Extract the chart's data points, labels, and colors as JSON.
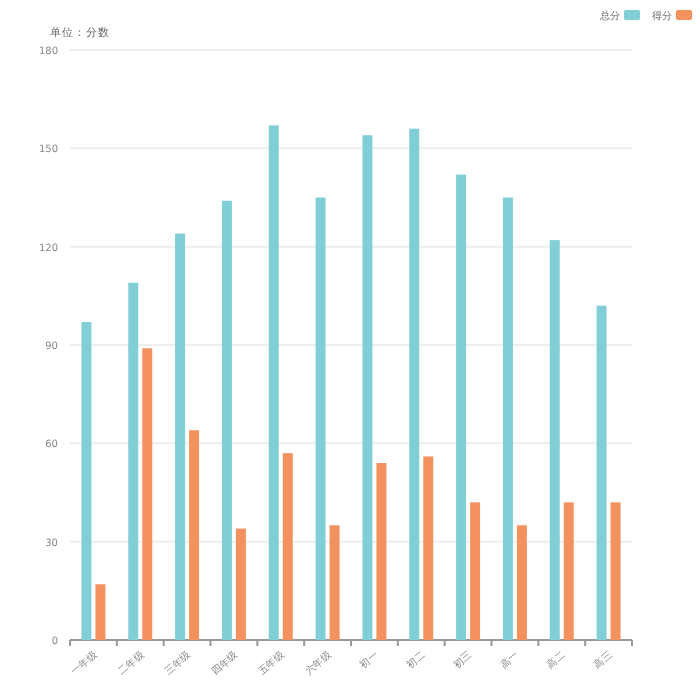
{
  "chart_data": {
    "type": "bar",
    "subtitle": "单位：分数",
    "categories": [
      "一年级",
      "二年级",
      "三年级",
      "四年级",
      "五年级",
      "六年级",
      "初一",
      "初二",
      "初三",
      "高一",
      "高二",
      "高三"
    ],
    "series": [
      {
        "name": "总分",
        "color": "#80cfd7",
        "values": [
          97,
          109,
          124,
          134,
          157,
          135,
          154,
          156,
          142,
          135,
          122,
          102
        ]
      },
      {
        "name": "得分",
        "color": "#f3925f",
        "values": [
          17,
          89,
          64,
          34,
          57,
          35,
          54,
          56,
          42,
          35,
          42,
          42
        ]
      }
    ],
    "ylim": [
      0,
      180
    ],
    "yticks": [
      0,
      30,
      60,
      90,
      120,
      150,
      180
    ],
    "grid": "y",
    "legend": "top right"
  }
}
